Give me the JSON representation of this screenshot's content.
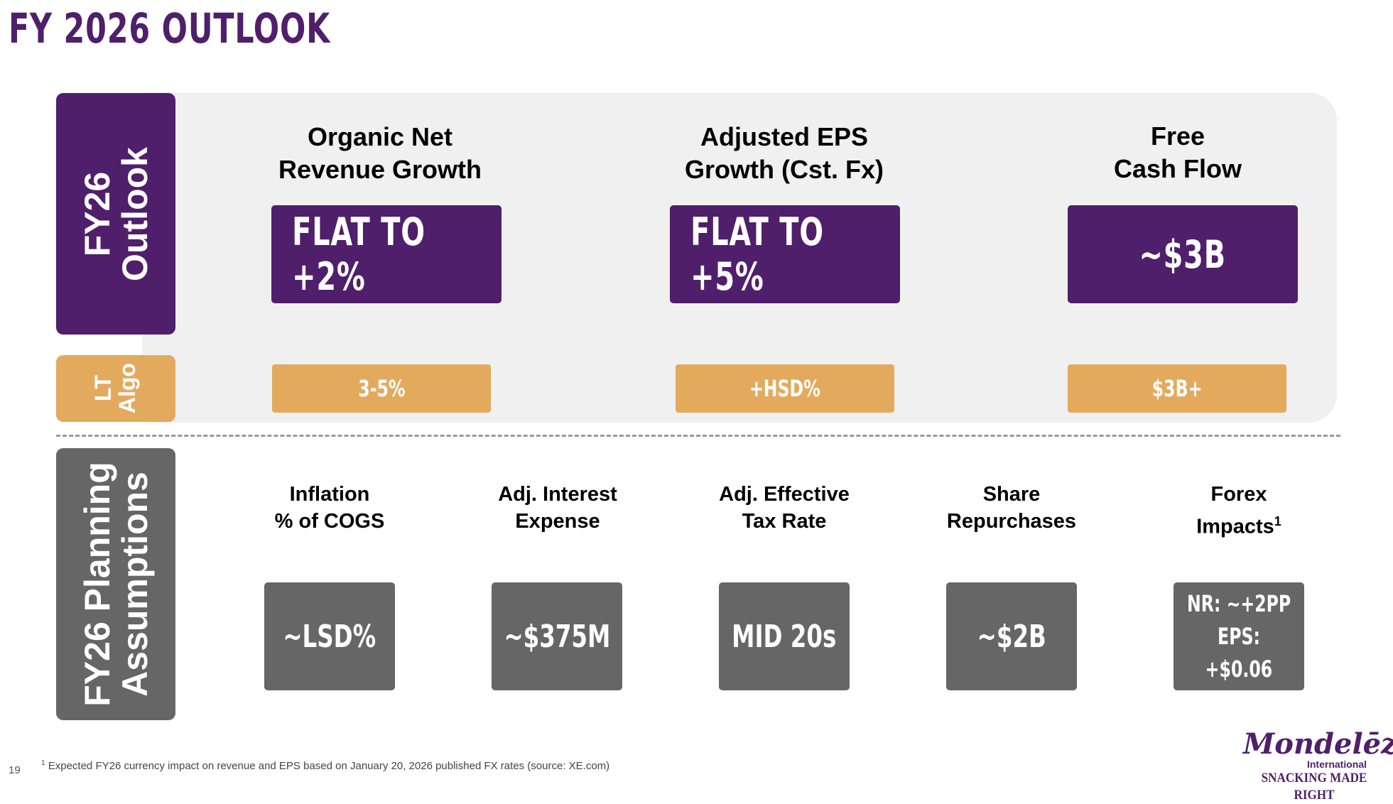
{
  "title": "FY 2026 OUTLOOK",
  "colors": {
    "purple": "#4f1f6b",
    "gold": "#e3aa5e",
    "gray": "#666666",
    "panel": "#f0f0f0"
  },
  "outlook": {
    "side_label_line1": "FY26",
    "side_label_line2": "Outlook",
    "algo_label_line1": "LT",
    "algo_label_line2": "Algo",
    "columns": [
      {
        "head_line1": "Organic Net",
        "head_line2": "Revenue Growth",
        "value": "FLAT TO +2%",
        "algo": "3-5%"
      },
      {
        "head_line1": "Adjusted EPS",
        "head_line2": "Growth (Cst. Fx)",
        "value": "FLAT TO +5%",
        "algo": "+HSD%"
      },
      {
        "head_line1": "Free",
        "head_line2": "Cash Flow",
        "value": "~$3B",
        "algo": "$3B+"
      }
    ]
  },
  "planning": {
    "side_label_line1": "FY26 Planning",
    "side_label_line2": "Assumptions",
    "items": [
      {
        "head_line1": "Inflation",
        "head_line2": "% of COGS",
        "value": "~LSD%"
      },
      {
        "head_line1": "Adj. Interest",
        "head_line2": "Expense",
        "value": "~$375M"
      },
      {
        "head_line1": "Adj. Effective",
        "head_line2": "Tax Rate",
        "value": "MID 20s"
      },
      {
        "head_line1": "Share",
        "head_line2": "Repurchases",
        "value": "~$2B"
      },
      {
        "head_line1": "Forex",
        "head_line2": "Impacts",
        "head_sup": "1",
        "value_line1": "NR: ~+2PP",
        "value_line2": "EPS: +$0.06"
      }
    ]
  },
  "footer": {
    "page_number": "19",
    "footnote_marker": "1",
    "footnote": "Expected FY26 currency impact on revenue and EPS based on January 20, 2026 published FX rates (source: XE.com)"
  },
  "logo": {
    "brand": "Mondelēz",
    "sub": "International",
    "tagline": "SNACKING MADE RIGHT"
  }
}
